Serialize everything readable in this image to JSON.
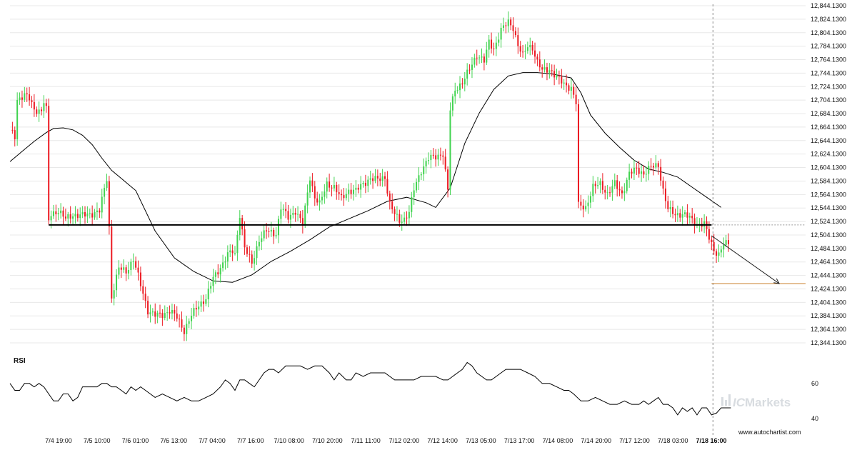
{
  "chart_data": [
    {
      "type": "candlestick",
      "panel": "price",
      "y_ticks": [
        "12,844.1300",
        "12,824.1300",
        "12,804.1300",
        "12,784.1300",
        "12,764.1300",
        "12,744.1300",
        "12,724.1300",
        "12,704.1300",
        "12,684.1300",
        "12,664.1300",
        "12,644.1300",
        "12,624.1300",
        "12,604.1300",
        "12,584.1300",
        "12,564.1300",
        "12,544.1300",
        "12,524.1300",
        "12,504.1300",
        "12,484.1300",
        "12,464.1300",
        "12,444.1300",
        "12,424.1300",
        "12,404.1300",
        "12,384.1300",
        "12,364.1300",
        "12,344.1300"
      ],
      "ylim": [
        12344.13,
        12844.13
      ],
      "x_labels": [
        "7/4 19:00",
        "7/5 10:00",
        "7/6 01:00",
        "7/6 13:00",
        "7/7 04:00",
        "7/7 16:00",
        "7/10 08:00",
        "7/10 20:00",
        "7/11 11:00",
        "7/12 02:00",
        "7/12 14:00",
        "7/13 05:00",
        "7/13 17:00",
        "7/14 08:00",
        "7/14 20:00",
        "7/17 12:00",
        "7/18 03:00",
        "7/18 16:00"
      ],
      "x_label_bold_index": 17,
      "close_path": [
        [
          0,
          12660
        ],
        [
          2,
          12650
        ],
        [
          3,
          12705
        ],
        [
          6,
          12712
        ],
        [
          8,
          12706
        ],
        [
          10,
          12690
        ],
        [
          13,
          12688
        ],
        [
          14,
          12702
        ],
        [
          15,
          12690
        ],
        [
          16,
          12525
        ],
        [
          17,
          12535
        ],
        [
          20,
          12540
        ],
        [
          23,
          12528
        ],
        [
          26,
          12534
        ],
        [
          30,
          12533
        ],
        [
          34,
          12536
        ],
        [
          37,
          12540
        ],
        [
          40,
          12588
        ],
        [
          41,
          12515
        ],
        [
          42,
          12412
        ],
        [
          45,
          12455
        ],
        [
          48,
          12450
        ],
        [
          51,
          12468
        ],
        [
          54,
          12430
        ],
        [
          57,
          12392
        ],
        [
          60,
          12385
        ],
        [
          63,
          12386
        ],
        [
          66,
          12392
        ],
        [
          69,
          12382
        ],
        [
          72,
          12362
        ],
        [
          75,
          12385
        ],
        [
          78,
          12400
        ],
        [
          81,
          12410
        ],
        [
          84,
          12440
        ],
        [
          87,
          12456
        ],
        [
          90,
          12475
        ],
        [
          92,
          12480
        ],
        [
          93,
          12475
        ],
        [
          95,
          12535
        ],
        [
          97,
          12485
        ],
        [
          100,
          12462
        ],
        [
          103,
          12497
        ],
        [
          106,
          12510
        ],
        [
          110,
          12506
        ],
        [
          112,
          12545
        ],
        [
          115,
          12530
        ],
        [
          118,
          12540
        ],
        [
          121,
          12520
        ],
        [
          124,
          12590
        ],
        [
          126,
          12560
        ],
        [
          128,
          12550
        ],
        [
          131,
          12580
        ],
        [
          134,
          12575
        ],
        [
          137,
          12558
        ],
        [
          140,
          12570
        ],
        [
          143,
          12570
        ],
        [
          146,
          12580
        ],
        [
          149,
          12588
        ],
        [
          152,
          12586
        ],
        [
          155,
          12590
        ],
        [
          157,
          12550
        ],
        [
          159,
          12535
        ],
        [
          161,
          12525
        ],
        [
          163,
          12528
        ],
        [
          165,
          12538
        ],
        [
          167,
          12572
        ],
        [
          170,
          12600
        ],
        [
          173,
          12618
        ],
        [
          176,
          12620
        ],
        [
          179,
          12625
        ],
        [
          181,
          12570
        ],
        [
          182,
          12690
        ],
        [
          184,
          12720
        ],
        [
          187,
          12730
        ],
        [
          190,
          12750
        ],
        [
          193,
          12772
        ],
        [
          196,
          12762
        ],
        [
          198,
          12790
        ],
        [
          200,
          12780
        ],
        [
          203,
          12808
        ],
        [
          206,
          12820
        ],
        [
          208,
          12812
        ],
        [
          210,
          12785
        ],
        [
          212,
          12770
        ],
        [
          214,
          12785
        ],
        [
          216,
          12782
        ],
        [
          218,
          12760
        ],
        [
          220,
          12748
        ],
        [
          223,
          12750
        ],
        [
          226,
          12738
        ],
        [
          229,
          12728
        ],
        [
          232,
          12722
        ],
        [
          234,
          12700
        ],
        [
          235,
          12548
        ],
        [
          238,
          12545
        ],
        [
          241,
          12575
        ],
        [
          244,
          12580
        ],
        [
          247,
          12565
        ],
        [
          250,
          12580
        ],
        [
          253,
          12565
        ],
        [
          256,
          12595
        ],
        [
          259,
          12602
        ],
        [
          262,
          12595
        ],
        [
          265,
          12605
        ],
        [
          268,
          12608
        ],
        [
          270,
          12570
        ],
        [
          272,
          12542
        ],
        [
          275,
          12535
        ],
        [
          278,
          12535
        ],
        [
          281,
          12530
        ],
        [
          284,
          12520
        ],
        [
          287,
          12520
        ],
        [
          289,
          12500
        ],
        [
          291,
          12482
        ],
        [
          293,
          12475
        ],
        [
          295,
          12490
        ],
        [
          297,
          12492
        ]
      ],
      "sma": [
        [
          0,
          12613
        ],
        [
          5,
          12628
        ],
        [
          10,
          12643
        ],
        [
          15,
          12656
        ],
        [
          18,
          12662
        ],
        [
          22,
          12663
        ],
        [
          26,
          12660
        ],
        [
          30,
          12652
        ],
        [
          34,
          12638
        ],
        [
          38,
          12618
        ],
        [
          42,
          12600
        ],
        [
          46,
          12588
        ],
        [
          52,
          12570
        ],
        [
          60,
          12510
        ],
        [
          68,
          12470
        ],
        [
          76,
          12450
        ],
        [
          84,
          12436
        ],
        [
          92,
          12434
        ],
        [
          100,
          12445
        ],
        [
          108,
          12465
        ],
        [
          116,
          12480
        ],
        [
          124,
          12497
        ],
        [
          132,
          12516
        ],
        [
          140,
          12528
        ],
        [
          148,
          12540
        ],
        [
          156,
          12554
        ],
        [
          164,
          12560
        ],
        [
          172,
          12552
        ],
        [
          176,
          12545
        ],
        [
          182,
          12574
        ],
        [
          188,
          12640
        ],
        [
          194,
          12685
        ],
        [
          200,
          12720
        ],
        [
          206,
          12740
        ],
        [
          212,
          12745
        ],
        [
          218,
          12745
        ],
        [
          224,
          12743
        ],
        [
          228,
          12740
        ],
        [
          232,
          12737
        ],
        [
          236,
          12715
        ],
        [
          240,
          12682
        ],
        [
          246,
          12655
        ],
        [
          252,
          12634
        ],
        [
          258,
          12615
        ],
        [
          264,
          12602
        ],
        [
          270,
          12597
        ],
        [
          276,
          12590
        ],
        [
          282,
          12575
        ],
        [
          288,
          12560
        ],
        [
          294,
          12545
        ]
      ],
      "support_level": 12519,
      "forecast_level": 12432,
      "forecast_arrow": [
        [
          290,
          12503
        ],
        [
          318,
          12432
        ]
      ],
      "colors": {
        "up": "#41d350",
        "down": "#ec1c24",
        "sma": "#000000",
        "support": "#000000",
        "forecast": "#c8802c",
        "grid": "#e8e8e8",
        "vline": "#888888"
      }
    },
    {
      "type": "line",
      "panel": "rsi",
      "title": "RSI",
      "y_ticks": [
        "60",
        "40"
      ],
      "ylim": [
        35,
        75
      ],
      "values": [
        [
          0,
          60
        ],
        [
          2,
          56
        ],
        [
          4,
          56
        ],
        [
          6,
          60
        ],
        [
          8,
          60
        ],
        [
          10,
          58
        ],
        [
          12,
          60
        ],
        [
          14,
          58
        ],
        [
          16,
          54
        ],
        [
          18,
          50
        ],
        [
          20,
          50
        ],
        [
          22,
          54
        ],
        [
          24,
          54
        ],
        [
          26,
          50
        ],
        [
          28,
          52
        ],
        [
          30,
          58
        ],
        [
          33,
          58
        ],
        [
          36,
          58
        ],
        [
          38,
          60
        ],
        [
          40,
          60
        ],
        [
          42,
          58
        ],
        [
          44,
          58
        ],
        [
          46,
          56
        ],
        [
          48,
          54
        ],
        [
          50,
          58
        ],
        [
          52,
          56
        ],
        [
          54,
          58
        ],
        [
          56,
          56
        ],
        [
          58,
          54
        ],
        [
          60,
          52
        ],
        [
          63,
          54
        ],
        [
          66,
          52
        ],
        [
          69,
          50
        ],
        [
          72,
          52
        ],
        [
          75,
          50
        ],
        [
          78,
          50
        ],
        [
          81,
          52
        ],
        [
          84,
          54
        ],
        [
          87,
          58
        ],
        [
          89,
          62
        ],
        [
          91,
          60
        ],
        [
          93,
          56
        ],
        [
          95,
          62
        ],
        [
          97,
          62
        ],
        [
          99,
          60
        ],
        [
          101,
          58
        ],
        [
          103,
          62
        ],
        [
          105,
          66
        ],
        [
          107,
          68
        ],
        [
          109,
          68
        ],
        [
          111,
          66
        ],
        [
          114,
          70
        ],
        [
          117,
          70
        ],
        [
          120,
          70
        ],
        [
          123,
          68
        ],
        [
          126,
          70
        ],
        [
          129,
          70
        ],
        [
          132,
          66
        ],
        [
          134,
          62
        ],
        [
          136,
          66
        ],
        [
          139,
          62
        ],
        [
          141,
          62
        ],
        [
          143,
          66
        ],
        [
          146,
          64
        ],
        [
          149,
          66
        ],
        [
          152,
          66
        ],
        [
          155,
          66
        ],
        [
          157,
          64
        ],
        [
          159,
          62
        ],
        [
          161,
          62
        ],
        [
          164,
          62
        ],
        [
          167,
          62
        ],
        [
          170,
          64
        ],
        [
          173,
          64
        ],
        [
          176,
          64
        ],
        [
          179,
          62
        ],
        [
          181,
          62
        ],
        [
          183,
          64
        ],
        [
          185,
          66
        ],
        [
          187,
          68
        ],
        [
          189,
          72
        ],
        [
          191,
          70
        ],
        [
          193,
          66
        ],
        [
          195,
          64
        ],
        [
          197,
          62
        ],
        [
          199,
          62
        ],
        [
          201,
          64
        ],
        [
          203,
          66
        ],
        [
          205,
          68
        ],
        [
          208,
          68
        ],
        [
          211,
          68
        ],
        [
          214,
          66
        ],
        [
          217,
          64
        ],
        [
          220,
          60
        ],
        [
          223,
          60
        ],
        [
          226,
          58
        ],
        [
          229,
          56
        ],
        [
          231,
          56
        ],
        [
          233,
          54
        ],
        [
          236,
          50
        ],
        [
          239,
          50
        ],
        [
          242,
          52
        ],
        [
          245,
          50
        ],
        [
          248,
          48
        ],
        [
          251,
          48
        ],
        [
          254,
          50
        ],
        [
          257,
          48
        ],
        [
          260,
          48
        ],
        [
          262,
          50
        ],
        [
          264,
          48
        ],
        [
          266,
          50
        ],
        [
          268,
          52
        ],
        [
          270,
          48
        ],
        [
          272,
          48
        ],
        [
          274,
          46
        ],
        [
          276,
          42
        ],
        [
          278,
          46
        ],
        [
          280,
          44
        ],
        [
          282,
          46
        ],
        [
          284,
          42
        ],
        [
          286,
          46
        ],
        [
          288,
          46
        ],
        [
          290,
          42
        ],
        [
          292,
          43
        ],
        [
          294,
          46
        ],
        [
          296,
          46
        ],
        [
          298,
          46
        ]
      ],
      "colors": {
        "line": "#000000"
      }
    }
  ],
  "brand": {
    "prefix": "IC",
    "name": "Markets",
    "icon": "ic-markets-logo-icon",
    "color": "#d8dce0"
  },
  "source": "www.autochartist.com"
}
